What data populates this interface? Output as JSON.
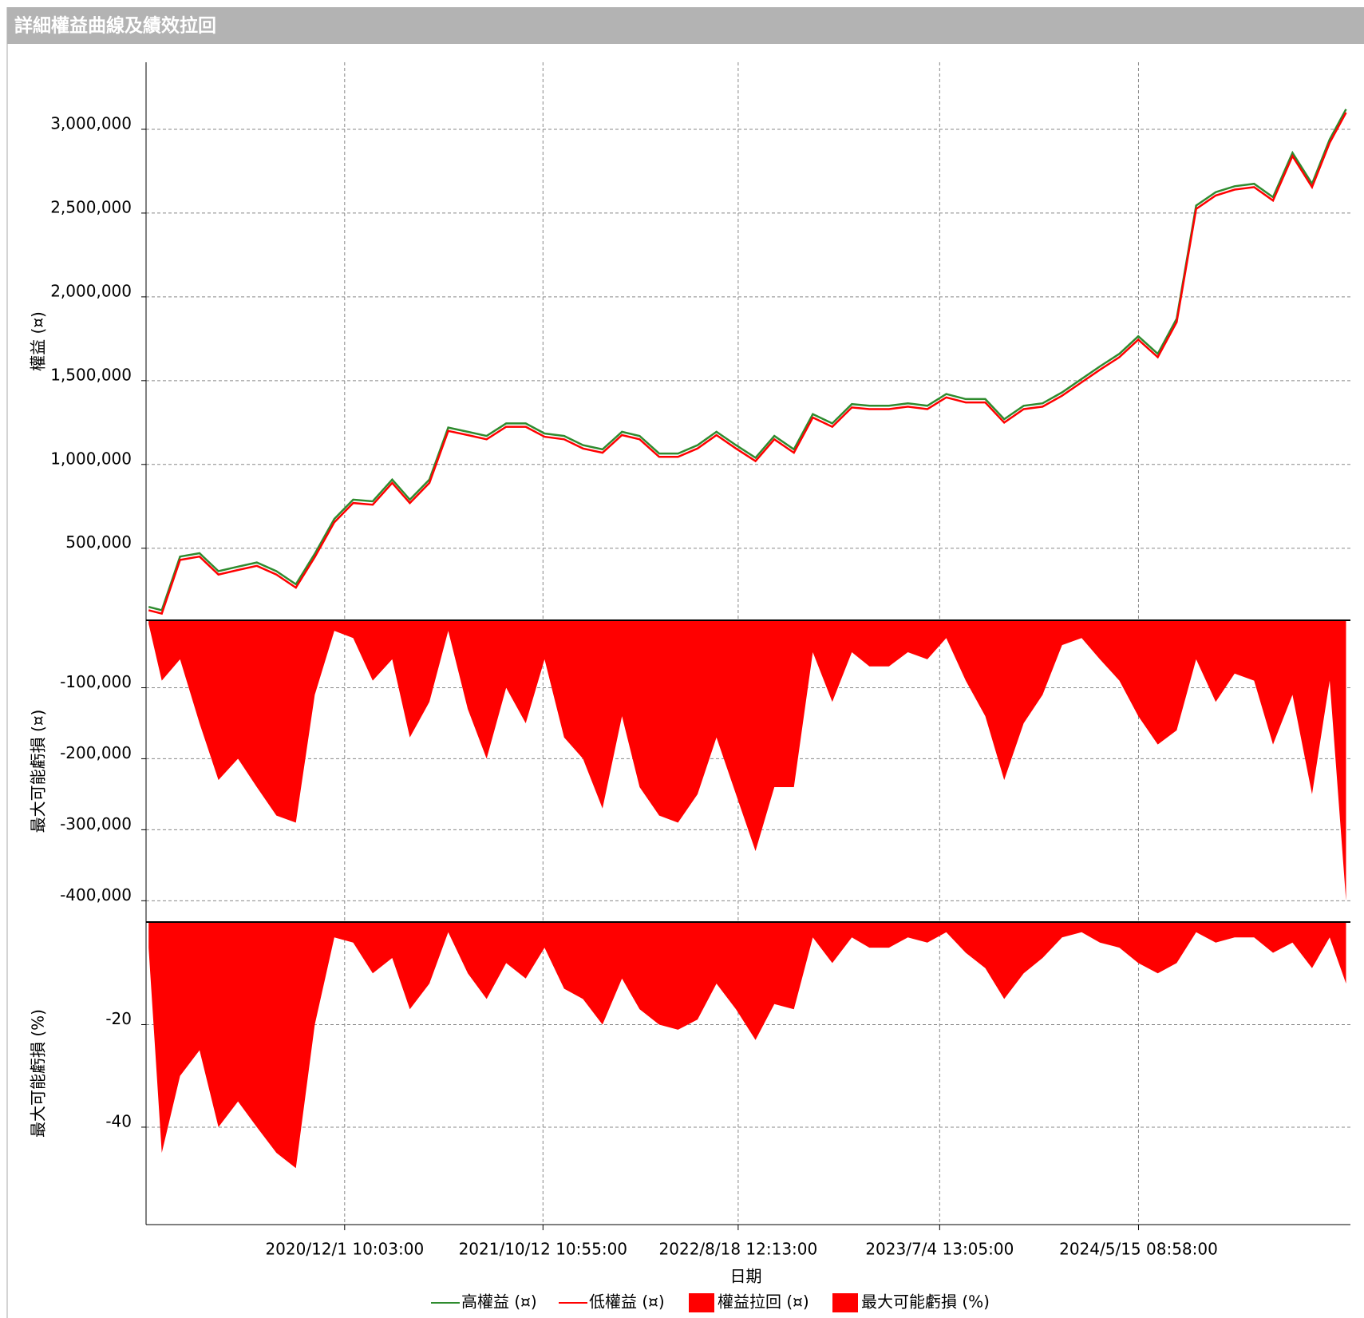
{
  "title": "詳細權益曲線及績效拉回",
  "chart_data": [
    {
      "type": "line",
      "y_label": "權益 (¤)",
      "grid": true,
      "ylim": [
        70000,
        3400000
      ],
      "yticks": [
        {
          "value": 500000,
          "label": "500,000"
        },
        {
          "value": 1000000,
          "label": "1,000,000"
        },
        {
          "value": 1500000,
          "label": "1,500,000"
        },
        {
          "value": 2000000,
          "label": "2,000,000"
        },
        {
          "value": 2500000,
          "label": "2,500,000"
        },
        {
          "value": 3000000,
          "label": "3,000,000"
        }
      ],
      "x": [
        "2020/1/25",
        "2020/2/15",
        "2020/3/15",
        "2020/4/15",
        "2020/5/15",
        "2020/6/15",
        "2020/7/15",
        "2020/8/15",
        "2020/9/15",
        "2020/10/15",
        "2020/11/15",
        "2020/12/15",
        "2021/1/15",
        "2021/2/15",
        "2021/3/15",
        "2021/4/15",
        "2021/5/15",
        "2021/6/15",
        "2021/7/15",
        "2021/8/15",
        "2021/9/15",
        "2021/10/15",
        "2021/11/15",
        "2021/12/15",
        "2022/1/15",
        "2022/2/15",
        "2022/3/15",
        "2022/4/15",
        "2022/5/15",
        "2022/6/15",
        "2022/7/15",
        "2022/8/15",
        "2022/9/15",
        "2022/10/15",
        "2022/11/15",
        "2022/12/15",
        "2023/1/15",
        "2023/2/15",
        "2023/3/15",
        "2023/4/15",
        "2023/5/15",
        "2023/6/15",
        "2023/7/15",
        "2023/8/15",
        "2023/9/15",
        "2023/10/15",
        "2023/11/15",
        "2023/12/15",
        "2024/1/15",
        "2024/2/15",
        "2024/3/15",
        "2024/4/15",
        "2024/5/15",
        "2024/6/15",
        "2024/7/15",
        "2024/8/15",
        "2024/9/15",
        "2024/10/15",
        "2024/11/15",
        "2024/12/15",
        "2025/1/15",
        "2025/2/15",
        "2025/3/15",
        "2025/4/10"
      ],
      "series": [
        {
          "name": "高權益 (¤)",
          "color": "#2e8b2e",
          "values": [
            150000,
            130000,
            450000,
            470000,
            363000,
            390000,
            415000,
            363000,
            285000,
            467000,
            675000,
            790000,
            780000,
            910000,
            790000,
            910000,
            1220000,
            1195000,
            1170000,
            1245000,
            1245000,
            1185000,
            1170000,
            1115000,
            1090000,
            1195000,
            1170000,
            1065000,
            1065000,
            1115000,
            1195000,
            1115000,
            1040000,
            1170000,
            1090000,
            1300000,
            1245000,
            1360000,
            1350000,
            1350000,
            1365000,
            1350000,
            1420000,
            1390000,
            1390000,
            1270000,
            1350000,
            1365000,
            1430000,
            1510000,
            1585000,
            1660000,
            1765000,
            1660000,
            1870000,
            2545000,
            2625000,
            2660000,
            2675000,
            2595000,
            2860000,
            2675000,
            2940000,
            3120000
          ]
        },
        {
          "name": "低權益 (¤)",
          "color": "#ff0000",
          "values": [
            130000,
            110000,
            430000,
            450000,
            343000,
            370000,
            395000,
            343000,
            265000,
            447000,
            655000,
            770000,
            760000,
            890000,
            770000,
            890000,
            1200000,
            1175000,
            1150000,
            1225000,
            1225000,
            1165000,
            1150000,
            1095000,
            1070000,
            1175000,
            1150000,
            1045000,
            1045000,
            1095000,
            1175000,
            1095000,
            1020000,
            1150000,
            1070000,
            1280000,
            1225000,
            1340000,
            1330000,
            1330000,
            1345000,
            1330000,
            1400000,
            1370000,
            1370000,
            1250000,
            1330000,
            1345000,
            1410000,
            1490000,
            1565000,
            1640000,
            1745000,
            1640000,
            1850000,
            2525000,
            2605000,
            2640000,
            2655000,
            2575000,
            2840000,
            2655000,
            2920000,
            3100000
          ]
        }
      ]
    },
    {
      "type": "area",
      "y_label": "最大可能虧損 (¤)",
      "grid": true,
      "ylim": [
        -430000,
        -5000
      ],
      "yticks": [
        {
          "value": -400000,
          "label": "-400,000"
        },
        {
          "value": -300000,
          "label": "-300,000"
        },
        {
          "value": -200000,
          "label": "-200,000"
        },
        {
          "value": -100000,
          "label": "-100,000"
        }
      ],
      "x": [
        "2020/1/25",
        "2020/2/15",
        "2020/3/15",
        "2020/4/15",
        "2020/5/15",
        "2020/6/15",
        "2020/7/15",
        "2020/8/15",
        "2020/9/15",
        "2020/10/15",
        "2020/11/15",
        "2020/12/15",
        "2021/1/15",
        "2021/2/15",
        "2021/3/15",
        "2021/4/15",
        "2021/5/15",
        "2021/6/15",
        "2021/7/15",
        "2021/8/15",
        "2021/9/15",
        "2021/10/15",
        "2021/11/15",
        "2021/12/15",
        "2022/1/15",
        "2022/2/15",
        "2022/3/15",
        "2022/4/15",
        "2022/5/15",
        "2022/6/15",
        "2022/7/15",
        "2022/8/15",
        "2022/9/15",
        "2022/10/15",
        "2022/11/15",
        "2022/12/15",
        "2023/1/15",
        "2023/2/15",
        "2023/3/15",
        "2023/4/15",
        "2023/5/15",
        "2023/6/15",
        "2023/7/15",
        "2023/8/15",
        "2023/9/15",
        "2023/10/15",
        "2023/11/15",
        "2023/12/15",
        "2024/1/15",
        "2024/2/15",
        "2024/3/15",
        "2024/4/15",
        "2024/5/15",
        "2024/6/15",
        "2024/7/15",
        "2024/8/15",
        "2024/9/15",
        "2024/10/15",
        "2024/11/15",
        "2024/12/15",
        "2025/1/15",
        "2025/2/15",
        "2025/3/15",
        "2025/4/10"
      ],
      "series": [
        {
          "name": "權益拉回 (¤)",
          "color": "#ff0000",
          "values": [
            -10000,
            -90000,
            -60000,
            -150000,
            -230000,
            -200000,
            -240000,
            -280000,
            -290000,
            -110000,
            -20000,
            -30000,
            -90000,
            -60000,
            -170000,
            -120000,
            -20000,
            -130000,
            -200000,
            -100000,
            -150000,
            -60000,
            -170000,
            -200000,
            -270000,
            -140000,
            -240000,
            -280000,
            -290000,
            -250000,
            -170000,
            -250000,
            -330000,
            -240000,
            -240000,
            -50000,
            -120000,
            -50000,
            -70000,
            -70000,
            -50000,
            -60000,
            -30000,
            -90000,
            -140000,
            -230000,
            -150000,
            -110000,
            -40000,
            -30000,
            -60000,
            -90000,
            -140000,
            -180000,
            -160000,
            -60000,
            -120000,
            -80000,
            -90000,
            -180000,
            -110000,
            -250000,
            -90000,
            -400000
          ]
        }
      ]
    },
    {
      "type": "area",
      "y_label": "最大可能虧損 (%)",
      "grid": true,
      "ylim": [
        -59,
        0
      ],
      "yticks": [
        -40,
        -20
      ],
      "x_label": "日期",
      "xlim": [
        "2020/1/21",
        "2025/4/17"
      ],
      "xticks": [
        "2020/12/1 10:03:00",
        "2021/10/12 10:55:00",
        "2022/8/18 12:13:00",
        "2023/7/4 13:05:00",
        "2024/5/15 08:58:00"
      ],
      "x": [
        "2020/1/25",
        "2020/2/15",
        "2020/3/15",
        "2020/4/15",
        "2020/5/15",
        "2020/6/15",
        "2020/7/15",
        "2020/8/15",
        "2020/9/15",
        "2020/10/15",
        "2020/11/15",
        "2020/12/15",
        "2021/1/15",
        "2021/2/15",
        "2021/3/15",
        "2021/4/15",
        "2021/5/15",
        "2021/6/15",
        "2021/7/15",
        "2021/8/15",
        "2021/9/15",
        "2021/10/15",
        "2021/11/15",
        "2021/12/15",
        "2022/1/15",
        "2022/2/15",
        "2022/3/15",
        "2022/4/15",
        "2022/5/15",
        "2022/6/15",
        "2022/7/15",
        "2022/8/15",
        "2022/9/15",
        "2022/10/15",
        "2022/11/15",
        "2022/12/15",
        "2023/1/15",
        "2023/2/15",
        "2023/3/15",
        "2023/4/15",
        "2023/5/15",
        "2023/6/15",
        "2023/7/15",
        "2023/8/15",
        "2023/9/15",
        "2023/10/15",
        "2023/11/15",
        "2023/12/15",
        "2024/1/15",
        "2024/2/15",
        "2024/3/15",
        "2024/4/15",
        "2024/5/15",
        "2024/6/15",
        "2024/7/15",
        "2024/8/15",
        "2024/9/15",
        "2024/10/15",
        "2024/11/15",
        "2024/12/15",
        "2025/1/15",
        "2025/2/15",
        "2025/3/15",
        "2025/4/10"
      ],
      "series": [
        {
          "name": "最大可能虧損 (%)",
          "color": "#ff0000",
          "values": [
            -5,
            -45,
            -30,
            -25,
            -40,
            -35,
            -40,
            -45,
            -48,
            -20,
            -3,
            -4,
            -10,
            -7,
            -17,
            -12,
            -2,
            -10,
            -15,
            -8,
            -11,
            -5,
            -13,
            -15,
            -20,
            -11,
            -17,
            -20,
            -21,
            -19,
            -12,
            -17,
            -23,
            -16,
            -17,
            -3,
            -8,
            -3,
            -5,
            -5,
            -3,
            -4,
            -2,
            -6,
            -9,
            -15,
            -10,
            -7,
            -3,
            -2,
            -4,
            -5,
            -8,
            -10,
            -8,
            -2,
            -4,
            -3,
            -3,
            -6,
            -4,
            -9,
            -3,
            -12
          ]
        }
      ]
    }
  ]
}
